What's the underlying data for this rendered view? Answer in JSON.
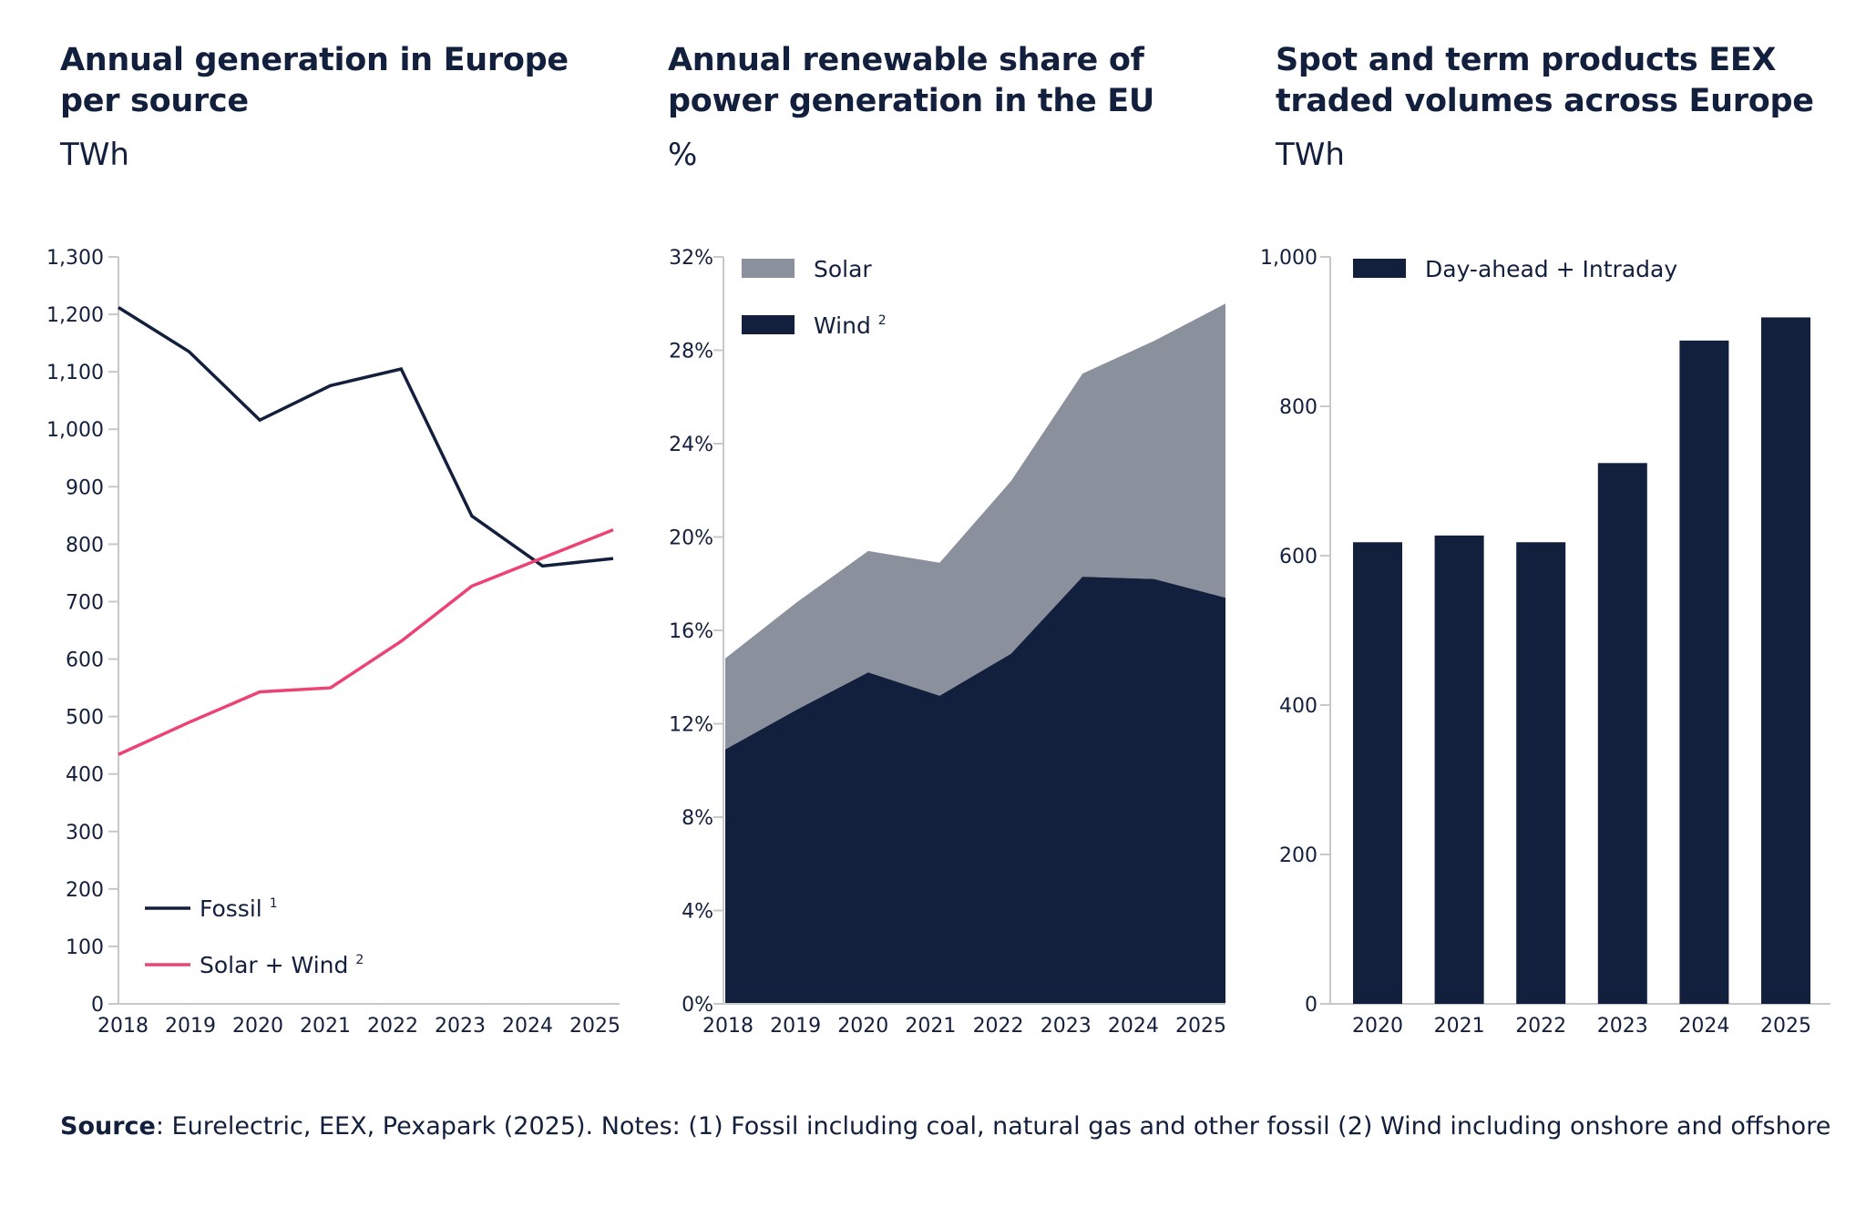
{
  "colors": {
    "navy": "#121f3d",
    "pink": "#ec4374",
    "grey": "#8a909c",
    "axis": "#c8c8cc"
  },
  "panels": [
    {
      "title_line1": "Annual generation in Europe",
      "title_line2": "per source",
      "unit": "TWh"
    },
    {
      "title_line1": "Annual renewable share of",
      "title_line2": "power generation in the EU",
      "unit": "%"
    },
    {
      "title_line1": "Spot and term products EEX",
      "title_line2": "traded volumes across Europe",
      "unit": "TWh"
    }
  ],
  "footer": {
    "source_label": "Source",
    "text": ": Eurelectric, EEX, Pexapark (2025). Notes: (1) Fossil including coal, natural gas and other fossil (2) Wind including onshore and offshore"
  },
  "chart_data": [
    {
      "type": "line",
      "title": "Annual generation in Europe per source",
      "ylabel": "TWh",
      "xlabel": "",
      "x": [
        "2018",
        "2019",
        "2020",
        "2021",
        "2022",
        "2023",
        "2024",
        "2025"
      ],
      "ylim": [
        0,
        1300
      ],
      "yticks": [
        0,
        100,
        200,
        300,
        400,
        500,
        600,
        700,
        800,
        900,
        1000,
        1100,
        1200,
        1300
      ],
      "ytick_labels": [
        "0",
        "100",
        "200",
        "300",
        "400",
        "500",
        "600",
        "700",
        "800",
        "900",
        "1,000",
        "1,100",
        "1,200",
        "1,300"
      ],
      "grid": false,
      "legend_position": "bottom-left",
      "series": [
        {
          "name": "Fossil",
          "superscript": "1",
          "color": "#121f3d",
          "values": [
            1212,
            1135,
            1016,
            1076,
            1105,
            849,
            762,
            775
          ]
        },
        {
          "name": "Solar + Wind",
          "superscript": "2",
          "color": "#ec4374",
          "values": [
            434,
            490,
            543,
            550,
            631,
            727,
            776,
            825
          ]
        }
      ]
    },
    {
      "type": "area",
      "stacked": true,
      "title": "Annual renewable share of power generation in the EU",
      "ylabel": "%",
      "xlabel": "",
      "x": [
        "2018",
        "2019",
        "2020",
        "2021",
        "2022",
        "2023",
        "2024",
        "2025"
      ],
      "ylim": [
        0,
        32
      ],
      "yticks": [
        0,
        4,
        8,
        12,
        16,
        20,
        24,
        28,
        32
      ],
      "ytick_labels": [
        "0%",
        "4%",
        "8%",
        "12%",
        "16%",
        "20%",
        "24%",
        "28%",
        "32%"
      ],
      "grid": false,
      "legend_position": "top-left",
      "series": [
        {
          "name": "Wind",
          "superscript": "2",
          "color": "#121f3d",
          "values": [
            10.9,
            12.6,
            14.2,
            13.2,
            15.0,
            18.3,
            18.2,
            17.4
          ]
        },
        {
          "name": "Solar",
          "superscript": "",
          "color": "#8a909c",
          "values": [
            3.9,
            4.6,
            5.2,
            5.7,
            7.4,
            8.7,
            10.2,
            12.6
          ]
        }
      ]
    },
    {
      "type": "bar",
      "title": "Spot and term products EEX traded volumes across Europe",
      "ylabel": "TWh",
      "xlabel": "",
      "categories": [
        "2020",
        "2021",
        "2022",
        "2023",
        "2024",
        "2025"
      ],
      "ylim": [
        0,
        1000
      ],
      "yticks": [
        0,
        200,
        400,
        600,
        800,
        1000
      ],
      "ytick_labels": [
        "0",
        "200",
        "400",
        "600",
        "800",
        "1,000"
      ],
      "grid": false,
      "legend_position": "top-left",
      "series": [
        {
          "name": "Day-ahead + Intraday",
          "color": "#121f3d",
          "values": [
            618,
            627,
            618,
            724,
            888,
            919
          ]
        }
      ]
    }
  ]
}
